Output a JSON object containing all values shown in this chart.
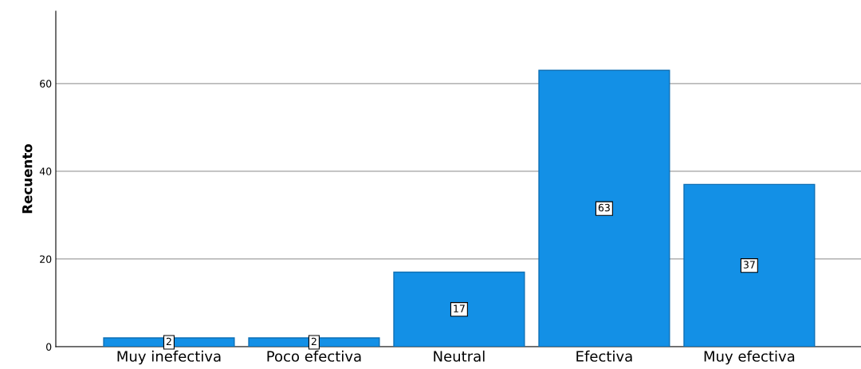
{
  "chart_data": {
    "type": "bar",
    "ylabel": "Recuento",
    "categories": [
      "Muy inefectiva",
      "Poco efectiva",
      "Neutral",
      "Efectiva",
      "Muy efectiva"
    ],
    "values": [
      2,
      2,
      17,
      63,
      37
    ],
    "color": "#1390e6",
    "ylim": [
      0,
      76.5
    ],
    "yticks": [
      0,
      20,
      40,
      60
    ],
    "grid": "y",
    "data_labels": true,
    "legend": false
  }
}
